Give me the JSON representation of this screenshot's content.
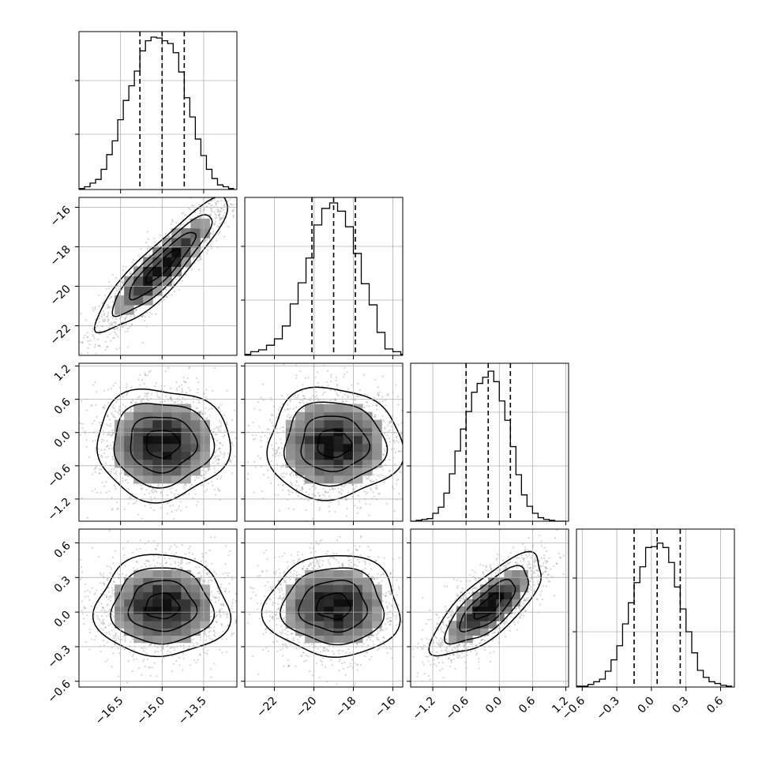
{
  "chart_data": {
    "type": "corner",
    "grid": true,
    "parameters": [
      {
        "range": [
          -18.0,
          -12.3
        ],
        "ticks": [
          -16.5,
          -15.0,
          -13.5
        ],
        "tick_labels": [
          "−16.5",
          "−15.0",
          "−13.5"
        ],
        "median": -15.0,
        "quantile_lines": [
          -15.8,
          -15.0,
          -14.2
        ],
        "hist": {
          "edges": [
            -18.0,
            -17.8,
            -17.6,
            -17.4,
            -17.2,
            -17.0,
            -16.8,
            -16.6,
            -16.4,
            -16.2,
            -16.0,
            -15.8,
            -15.6,
            -15.4,
            -15.2,
            -15.0,
            -14.8,
            -14.6,
            -14.4,
            -14.2,
            -14.0,
            -13.8,
            -13.6,
            -13.4,
            -13.2,
            -13.0,
            -12.8,
            -12.6,
            -12.4
          ],
          "counts": [
            1,
            3,
            7,
            11,
            22,
            38,
            53,
            76,
            97,
            113,
            129,
            151,
            162,
            166,
            165,
            162,
            159,
            149,
            128,
            100,
            79,
            55,
            37,
            22,
            12,
            5,
            3,
            1
          ],
          "ymax": 172
        }
      },
      {
        "range": [
          -23.5,
          -15.5
        ],
        "ticks": [
          -22,
          -20,
          -18,
          -16
        ],
        "tick_labels": [
          "−22",
          "−20",
          "−18",
          "−16"
        ],
        "median": -19.0,
        "quantile_lines": [
          -20.1,
          -19.0,
          -17.9
        ],
        "hist": {
          "edges": [
            -23.6,
            -23.2,
            -22.8,
            -22.4,
            -22.0,
            -21.6,
            -21.2,
            -20.8,
            -20.4,
            -20.0,
            -19.6,
            -19.2,
            -18.8,
            -18.4,
            -18.0,
            -17.6,
            -17.2,
            -16.8,
            -16.4,
            -16.0,
            -15.6,
            -15.2
          ],
          "counts": [
            1,
            4,
            6,
            11,
            18,
            32,
            56,
            79,
            106,
            142,
            160,
            166,
            157,
            140,
            111,
            78,
            55,
            25,
            7,
            4,
            1
          ],
          "ymax": 172
        }
      },
      {
        "range": [
          -1.6,
          1.25
        ],
        "ticks": [
          -1.2,
          -0.6,
          0.0,
          0.6,
          1.2
        ],
        "tick_labels": [
          "−1.2",
          "−0.6",
          "0.0",
          "0.6",
          "1.2"
        ],
        "median": -0.2,
        "quantile_lines": [
          -0.6,
          -0.2,
          0.2
        ],
        "hist": {
          "edges": [
            -1.6,
            -1.5,
            -1.4,
            -1.3,
            -1.2,
            -1.1,
            -1.0,
            -0.9,
            -0.8,
            -0.7,
            -0.6,
            -0.5,
            -0.4,
            -0.3,
            -0.2,
            -0.1,
            0.0,
            0.1,
            0.2,
            0.3,
            0.4,
            0.5,
            0.6,
            0.7,
            0.8,
            0.9,
            1.0,
            1.1,
            1.2
          ],
          "counts": [
            0,
            1,
            2,
            3,
            9,
            16,
            32,
            54,
            80,
            105,
            125,
            147,
            157,
            164,
            171,
            159,
            137,
            115,
            85,
            53,
            30,
            17,
            9,
            4,
            2,
            1,
            0,
            0
          ],
          "ymax": 180
        }
      },
      {
        "range": [
          -0.65,
          0.72
        ],
        "ticks": [
          -0.6,
          -0.3,
          0.0,
          0.3,
          0.6
        ],
        "tick_labels": [
          "−0.6",
          "−0.3",
          "0.0",
          "0.3",
          "0.6"
        ],
        "median": 0.05,
        "quantile_lines": [
          -0.15,
          0.05,
          0.25
        ],
        "hist": {
          "edges": [
            -0.65,
            -0.6,
            -0.55,
            -0.5,
            -0.45,
            -0.4,
            -0.35,
            -0.3,
            -0.25,
            -0.2,
            -0.15,
            -0.1,
            -0.05,
            0.0,
            0.05,
            0.1,
            0.15,
            0.2,
            0.25,
            0.3,
            0.35,
            0.4,
            0.45,
            0.5,
            0.55,
            0.6,
            0.65,
            0.7
          ],
          "counts": [
            1,
            1,
            3,
            6,
            9,
            18,
            31,
            47,
            72,
            96,
            119,
            137,
            159,
            160,
            164,
            159,
            142,
            114,
            89,
            63,
            39,
            19,
            11,
            6,
            4,
            2,
            1
          ],
          "ymax": 180
        }
      }
    ],
    "panels_2d": [
      {
        "row": 1,
        "col": 0,
        "x_mean": -15.0,
        "y_mean": -19.0,
        "sx": 1.2,
        "sy": 1.7,
        "rho": 0.9
      },
      {
        "row": 2,
        "col": 0,
        "x_mean": -15.0,
        "y_mean": -0.2,
        "sx": 1.2,
        "sy": 0.5,
        "rho": 0.0
      },
      {
        "row": 2,
        "col": 1,
        "x_mean": -19.0,
        "y_mean": -0.2,
        "sx": 1.7,
        "sy": 0.5,
        "rho": 0.0
      },
      {
        "row": 3,
        "col": 0,
        "x_mean": -15.0,
        "y_mean": 0.05,
        "sx": 1.2,
        "sy": 0.22,
        "rho": 0.0
      },
      {
        "row": 3,
        "col": 1,
        "x_mean": -19.0,
        "y_mean": 0.05,
        "sx": 1.7,
        "sy": 0.22,
        "rho": 0.0
      },
      {
        "row": 3,
        "col": 2,
        "x_mean": -0.2,
        "y_mean": 0.05,
        "sx": 0.5,
        "sy": 0.22,
        "rho": 0.75
      }
    ],
    "contour_levels_sigma": [
      0.5,
      1.0,
      1.5,
      2.0
    ],
    "colors": {
      "line": "#000000",
      "scatter": "#888888",
      "grid": "#b0b0b0",
      "density_dark": "#111111",
      "density_light": "#f2f2f2"
    }
  }
}
